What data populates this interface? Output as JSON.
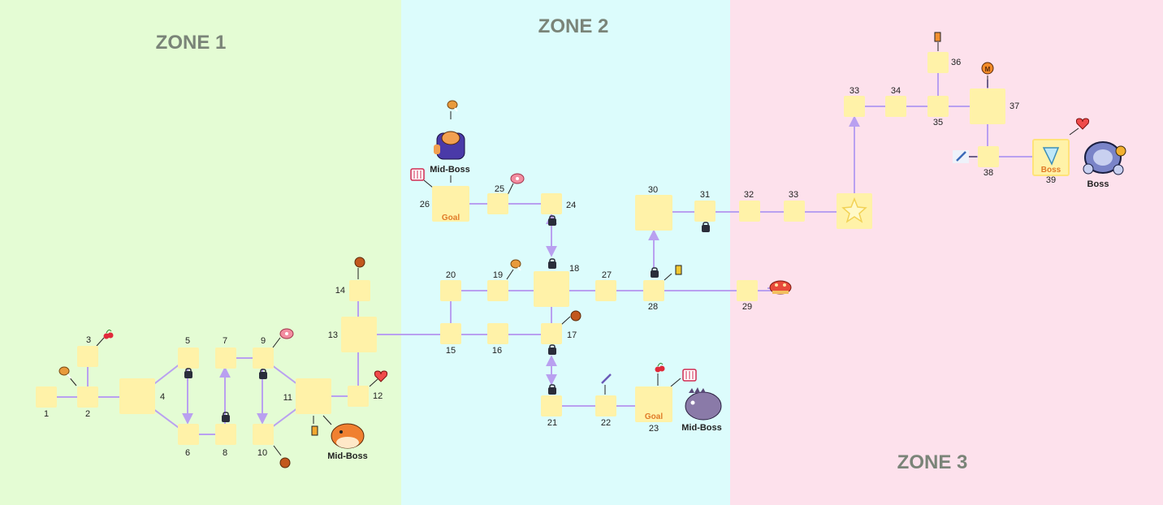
{
  "zones": [
    "ZONE 1",
    "ZONE 2",
    "ZONE 3"
  ],
  "zone_colors": [
    "#e4fcd4",
    "#dcfcfc",
    "#fde1ec"
  ],
  "edge_color": "#b9a0f0",
  "node_color": "#fff2a8",
  "goal_color": "#e07b28",
  "nodes": {
    "n1": "1",
    "n2": "2",
    "n3": "3",
    "n4": "4",
    "n5": "5",
    "n6": "6",
    "n7": "7",
    "n8": "8",
    "n9": "9",
    "n10": "10",
    "n11": "11",
    "n12": "12",
    "n13": "13",
    "n14": "14",
    "n15": "15",
    "n16": "16",
    "n17": "17",
    "n18": "18",
    "n19": "19",
    "n20": "20",
    "n21": "21",
    "n22": "22",
    "n23": "23",
    "n24": "24",
    "n25": "25",
    "n26": "26",
    "n27": "27",
    "n28": "28",
    "n29": "29",
    "n30": "30",
    "n31": "31",
    "n32": "32",
    "n33a": "33",
    "n33b": "33",
    "n34": "34",
    "n35": "35",
    "n36": "36",
    "n37": "37",
    "n38": "38",
    "n39": "39"
  },
  "node_tags": {
    "goal": "Goal",
    "boss": "Boss"
  },
  "enemy_labels": {
    "mid_boss": "Mid-Boss",
    "boss": "Boss"
  },
  "icons": [
    "drumstick-icon",
    "cherry-icon",
    "meat-icon",
    "heart-icon",
    "battery-icon",
    "lock-icon",
    "sword-icon",
    "gift-box-icon",
    "shell-icon",
    "star-icon",
    "crystal-icon",
    "medal-icon"
  ]
}
